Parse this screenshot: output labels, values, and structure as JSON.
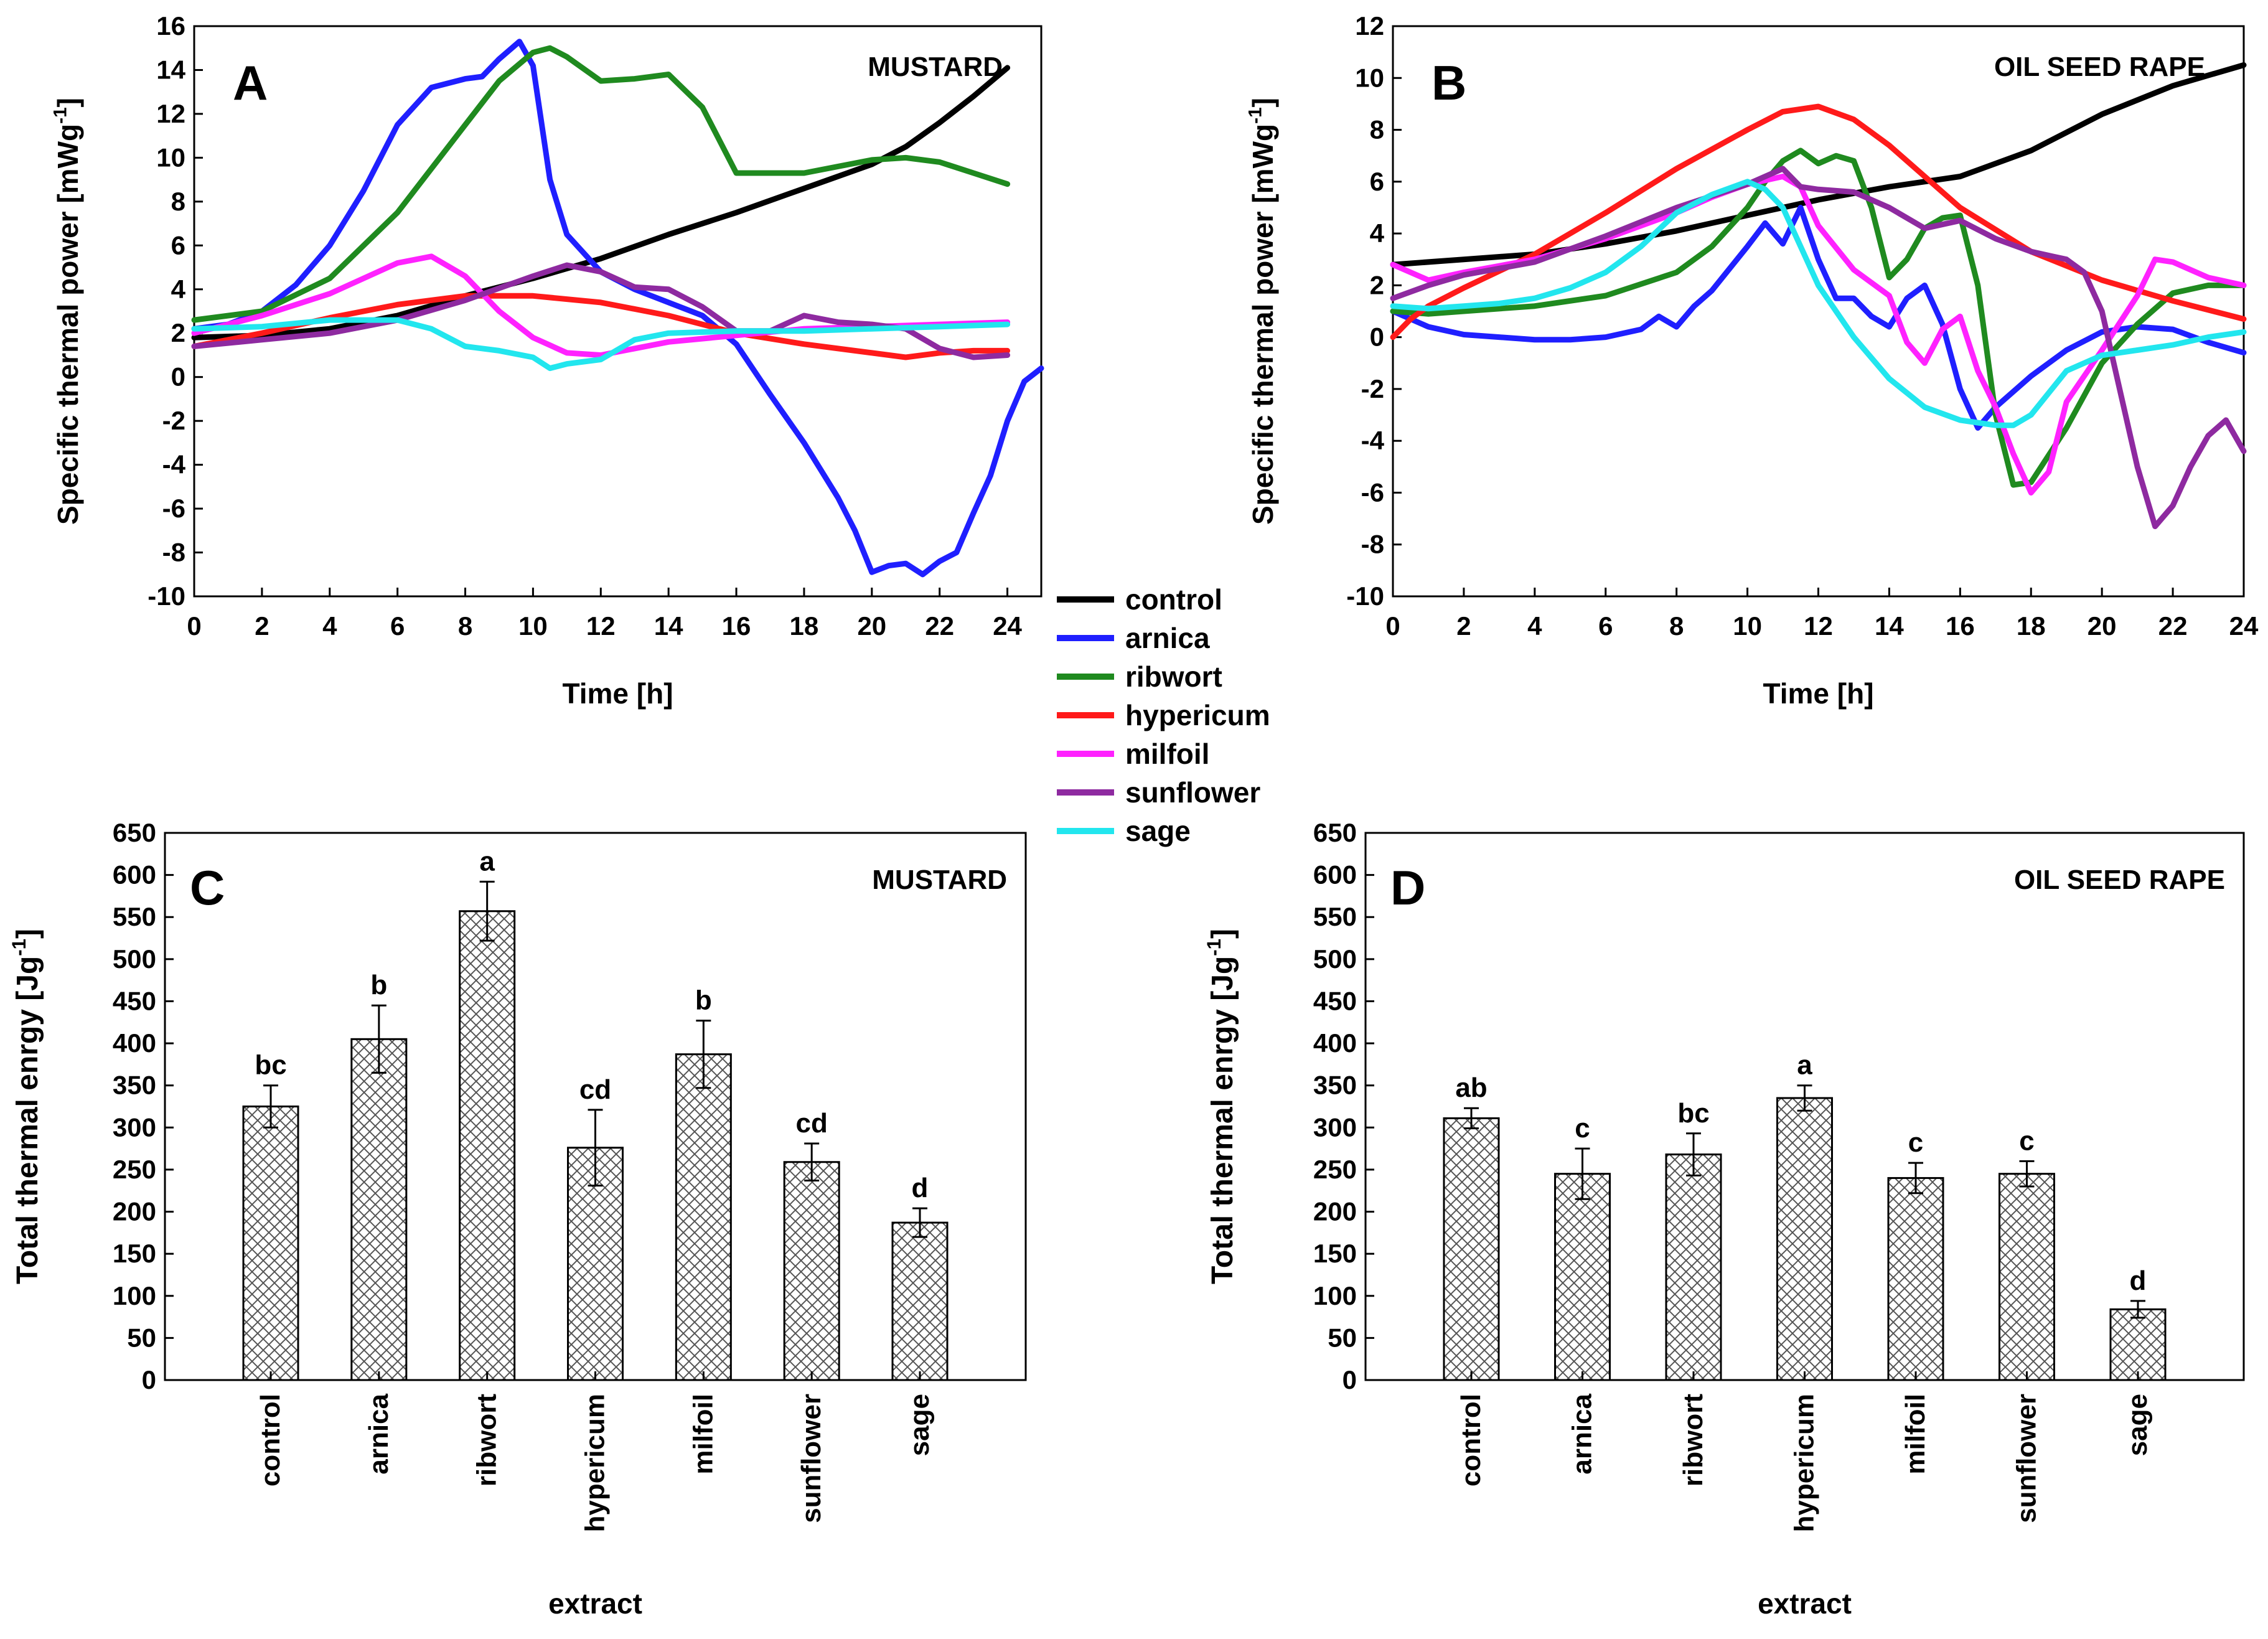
{
  "legend": {
    "entries": [
      {
        "label": "control",
        "color": "#000000"
      },
      {
        "label": "arnica",
        "color": "#1f1fff"
      },
      {
        "label": "ribwort",
        "color": "#1f8a1f"
      },
      {
        "label": "hypericum",
        "color": "#ff1a1a"
      },
      {
        "label": "milfoil",
        "color": "#ff22ff"
      },
      {
        "label": "sunflower",
        "color": "#8e2aa0"
      },
      {
        "label": "sage",
        "color": "#22e6ee"
      }
    ]
  },
  "chart_data": [
    {
      "type": "line",
      "panel_letter": "A",
      "title": "MUSTARD",
      "xlabel": "Time [h]",
      "ylabel": "Specific thermal power [mWg-1]",
      "ylabel_main": "Specific thermal power [mWg",
      "ylabel_sup": "-1",
      "ylabel_end": "]",
      "xlim": [
        0,
        25
      ],
      "ylim": [
        -10,
        16
      ],
      "xticks": [
        0,
        2,
        4,
        6,
        8,
        10,
        12,
        14,
        16,
        18,
        20,
        22,
        24
      ],
      "yticks": [
        -10,
        -8,
        -6,
        -4,
        -2,
        0,
        2,
        4,
        6,
        8,
        10,
        12,
        14,
        16
      ],
      "series": [
        {
          "name": "control",
          "x": [
            0,
            2,
            4,
            6,
            8,
            10,
            12,
            14,
            16,
            18,
            20,
            21,
            22,
            23,
            24
          ],
          "y": [
            1.8,
            1.9,
            2.2,
            2.8,
            3.7,
            4.5,
            5.4,
            6.5,
            7.5,
            8.6,
            9.7,
            10.5,
            11.6,
            12.8,
            14.1
          ]
        },
        {
          "name": "arnica",
          "x": [
            0,
            1,
            2,
            3,
            4,
            5,
            6,
            7,
            7.5,
            8,
            8.5,
            9,
            9.6,
            10,
            10.5,
            11,
            12,
            13,
            14,
            15,
            16,
            17,
            18,
            19,
            19.5,
            20,
            20.5,
            21,
            21.5,
            22,
            22.5,
            23,
            23.5,
            24,
            24.5,
            25
          ],
          "y": [
            2.2,
            2.4,
            3.0,
            4.2,
            6.0,
            8.5,
            11.5,
            13.2,
            13.4,
            13.6,
            13.7,
            14.5,
            15.3,
            14.2,
            9.0,
            6.5,
            4.8,
            4.0,
            3.4,
            2.8,
            1.5,
            -0.8,
            -3.0,
            -5.5,
            -7.0,
            -8.9,
            -8.6,
            -8.5,
            -9.0,
            -8.4,
            -8.0,
            -6.2,
            -4.5,
            -2.0,
            -0.2,
            0.4
          ]
        },
        {
          "name": "ribwort",
          "x": [
            0,
            2,
            4,
            6,
            8,
            9,
            10,
            10.5,
            11,
            12,
            13,
            14,
            15,
            16,
            17,
            18,
            20,
            21,
            22,
            23,
            24
          ],
          "y": [
            2.6,
            3.0,
            4.5,
            7.5,
            11.5,
            13.5,
            14.8,
            15.0,
            14.6,
            13.5,
            13.6,
            13.8,
            12.3,
            9.3,
            9.3,
            9.3,
            9.9,
            10.0,
            9.8,
            9.3,
            8.8
          ]
        },
        {
          "name": "hypericum",
          "x": [
            0,
            2,
            4,
            6,
            8,
            10,
            12,
            14,
            16,
            18,
            20,
            21,
            22,
            23,
            24
          ],
          "y": [
            1.4,
            2.0,
            2.7,
            3.3,
            3.7,
            3.7,
            3.4,
            2.8,
            2.0,
            1.5,
            1.1,
            0.9,
            1.1,
            1.2,
            1.2
          ]
        },
        {
          "name": "milfoil",
          "x": [
            0,
            2,
            4,
            6,
            7,
            8,
            9,
            10,
            11,
            12,
            14,
            16,
            18,
            20,
            22,
            24
          ],
          "y": [
            2.0,
            2.8,
            3.8,
            5.2,
            5.5,
            4.6,
            3.0,
            1.8,
            1.1,
            1.0,
            1.6,
            1.9,
            2.2,
            2.3,
            2.4,
            2.5
          ]
        },
        {
          "name": "sunflower",
          "x": [
            0,
            2,
            4,
            6,
            8,
            10,
            11,
            12,
            13,
            14,
            15,
            16,
            17,
            18,
            19,
            20,
            21,
            22,
            23,
            24
          ],
          "y": [
            1.4,
            1.7,
            2.0,
            2.6,
            3.5,
            4.6,
            5.1,
            4.8,
            4.1,
            4.0,
            3.2,
            2.1,
            2.1,
            2.8,
            2.5,
            2.4,
            2.2,
            1.3,
            0.9,
            1.0
          ]
        },
        {
          "name": "sage",
          "x": [
            0,
            2,
            4,
            6,
            7,
            8,
            9,
            10,
            10.5,
            11,
            12,
            13,
            14,
            16,
            18,
            20,
            22,
            24
          ],
          "y": [
            2.2,
            2.3,
            2.6,
            2.6,
            2.2,
            1.4,
            1.2,
            0.9,
            0.4,
            0.6,
            0.8,
            1.7,
            2.0,
            2.1,
            2.1,
            2.2,
            2.3,
            2.4
          ]
        }
      ]
    },
    {
      "type": "line",
      "panel_letter": "B",
      "title": "OIL SEED RAPE",
      "xlabel": "Time [h]",
      "ylabel": "Specific thermal power [mWg-1]",
      "ylabel_main": "Specific thermal power [mWg",
      "ylabel_sup": "-1",
      "ylabel_end": "]",
      "xlim": [
        0,
        24
      ],
      "ylim": [
        -10,
        12
      ],
      "xticks": [
        0,
        2,
        4,
        6,
        8,
        10,
        12,
        14,
        16,
        18,
        20,
        22,
        24
      ],
      "yticks": [
        -10,
        -8,
        -6,
        -4,
        -2,
        0,
        2,
        4,
        6,
        8,
        10,
        12
      ],
      "series": [
        {
          "name": "control",
          "x": [
            0,
            2,
            4,
            6,
            8,
            10,
            12,
            14,
            16,
            18,
            20,
            22,
            23,
            24
          ],
          "y": [
            2.8,
            3.0,
            3.2,
            3.6,
            4.1,
            4.7,
            5.3,
            5.8,
            6.2,
            7.2,
            8.6,
            9.7,
            10.1,
            10.5
          ]
        },
        {
          "name": "arnica",
          "x": [
            0,
            1,
            2,
            3,
            4,
            5,
            6,
            7,
            7.5,
            8,
            8.5,
            9,
            10,
            10.5,
            11,
            11.5,
            12,
            12.5,
            13,
            13.5,
            14,
            14.5,
            15,
            15.5,
            16,
            16.5,
            17,
            18,
            19,
            20,
            21,
            22,
            23,
            24
          ],
          "y": [
            1.0,
            0.4,
            0.1,
            0.0,
            -0.1,
            -0.1,
            0.0,
            0.3,
            0.8,
            0.4,
            1.2,
            1.8,
            3.5,
            4.4,
            3.6,
            5.0,
            3.0,
            1.5,
            1.5,
            0.8,
            0.4,
            1.5,
            2.0,
            0.5,
            -2.0,
            -3.5,
            -2.7,
            -1.5,
            -0.5,
            0.2,
            0.4,
            0.3,
            -0.2,
            -0.6
          ]
        },
        {
          "name": "ribwort",
          "x": [
            0,
            1,
            2,
            4,
            6,
            8,
            9,
            10,
            10.5,
            11,
            11.5,
            12,
            12.5,
            13,
            13.5,
            14,
            14.5,
            15,
            15.5,
            16,
            16.5,
            17,
            17.5,
            18,
            19,
            20,
            21,
            22,
            23,
            24
          ],
          "y": [
            1.0,
            0.9,
            1.0,
            1.2,
            1.6,
            2.5,
            3.5,
            5.0,
            6.0,
            6.8,
            7.2,
            6.7,
            7.0,
            6.8,
            5.0,
            2.3,
            3.0,
            4.2,
            4.6,
            4.7,
            2.0,
            -3.0,
            -5.7,
            -5.6,
            -3.5,
            -1.0,
            0.5,
            1.7,
            2.0,
            2.0
          ]
        },
        {
          "name": "hypericum",
          "x": [
            0,
            0.5,
            1,
            2,
            4,
            6,
            8,
            10,
            11,
            12,
            13,
            14,
            15,
            16,
            18,
            20,
            22,
            24
          ],
          "y": [
            0.0,
            0.7,
            1.2,
            1.9,
            3.2,
            4.8,
            6.5,
            8.0,
            8.7,
            8.9,
            8.4,
            7.4,
            6.2,
            5.0,
            3.3,
            2.2,
            1.4,
            0.7
          ]
        },
        {
          "name": "milfoil",
          "x": [
            0,
            1,
            2,
            4,
            6,
            8,
            9,
            10,
            11,
            11.5,
            12,
            13,
            14,
            14.5,
            15,
            15.5,
            16,
            16.5,
            17,
            17.5,
            18,
            18.5,
            19,
            20,
            21,
            21.5,
            22,
            23,
            24
          ],
          "y": [
            2.8,
            2.2,
            2.5,
            3.0,
            3.8,
            4.8,
            5.4,
            5.9,
            6.2,
            5.8,
            4.3,
            2.6,
            1.6,
            -0.2,
            -1.0,
            0.3,
            0.8,
            -1.3,
            -2.7,
            -4.5,
            -6.0,
            -5.2,
            -2.5,
            -0.5,
            1.6,
            3.0,
            2.9,
            2.3,
            2.0
          ]
        },
        {
          "name": "sunflower",
          "x": [
            0,
            1,
            2,
            4,
            6,
            8,
            10,
            11,
            11.5,
            12,
            13,
            14,
            15,
            16,
            17,
            18,
            19,
            19.5,
            20,
            20.5,
            21,
            21.5,
            22,
            22.5,
            23,
            23.5,
            24
          ],
          "y": [
            1.5,
            2.0,
            2.4,
            2.9,
            3.9,
            5.0,
            5.9,
            6.5,
            5.8,
            5.7,
            5.6,
            5.0,
            4.2,
            4.5,
            3.8,
            3.3,
            3.0,
            2.5,
            1.0,
            -2.0,
            -5.0,
            -7.3,
            -6.5,
            -5.0,
            -3.8,
            -3.2,
            -4.4
          ]
        },
        {
          "name": "sage",
          "x": [
            0,
            1,
            2,
            3,
            4,
            5,
            6,
            7,
            8,
            9,
            10,
            10.5,
            11,
            11.5,
            12,
            13,
            14,
            15,
            16,
            17,
            17.5,
            18,
            19,
            20,
            21,
            22,
            23,
            24
          ],
          "y": [
            1.2,
            1.1,
            1.2,
            1.3,
            1.5,
            1.9,
            2.5,
            3.5,
            4.8,
            5.5,
            6.0,
            5.7,
            5.0,
            3.5,
            2.0,
            0.0,
            -1.6,
            -2.7,
            -3.2,
            -3.4,
            -3.4,
            -3.0,
            -1.3,
            -0.7,
            -0.5,
            -0.3,
            0.0,
            0.2
          ]
        }
      ]
    },
    {
      "type": "bar",
      "panel_letter": "C",
      "title": "MUSTARD",
      "xlabel": "extract",
      "ylabel": "Total thermal enrgy [Jg-1]",
      "ylabel_main": "Total thermal enrgy [Jg",
      "ylabel_sup": "-1",
      "ylabel_end": "]",
      "ylim": [
        0,
        650
      ],
      "yticks": [
        0,
        50,
        100,
        150,
        200,
        250,
        300,
        350,
        400,
        450,
        500,
        550,
        600,
        650
      ],
      "categories": [
        "control",
        "arnica",
        "ribwort",
        "hypericum",
        "milfoil",
        "sunflower",
        "sage"
      ],
      "values": [
        325,
        405,
        557,
        276,
        387,
        259,
        187
      ],
      "errors": [
        25,
        40,
        35,
        45,
        40,
        22,
        17
      ],
      "letters": [
        "bc",
        "b",
        "a",
        "cd",
        "b",
        "cd",
        "d"
      ]
    },
    {
      "type": "bar",
      "panel_letter": "D",
      "title": "OIL SEED RAPE",
      "xlabel": "extract",
      "ylabel": "Total thermal enrgy [Jg-1]",
      "ylabel_main": "Total thermal enrgy [Jg",
      "ylabel_sup": "-1",
      "ylabel_end": "]",
      "ylim": [
        0,
        650
      ],
      "yticks": [
        0,
        50,
        100,
        150,
        200,
        250,
        300,
        350,
        400,
        450,
        500,
        550,
        600,
        650
      ],
      "categories": [
        "control",
        "arnica",
        "ribwort",
        "hypericum",
        "milfoil",
        "sunflower",
        "sage"
      ],
      "values": [
        311,
        245,
        268,
        335,
        240,
        245,
        84
      ],
      "errors": [
        12,
        30,
        25,
        15,
        18,
        15,
        10
      ],
      "letters": [
        "ab",
        "c",
        "bc",
        "a",
        "c",
        "c",
        "d"
      ]
    }
  ]
}
